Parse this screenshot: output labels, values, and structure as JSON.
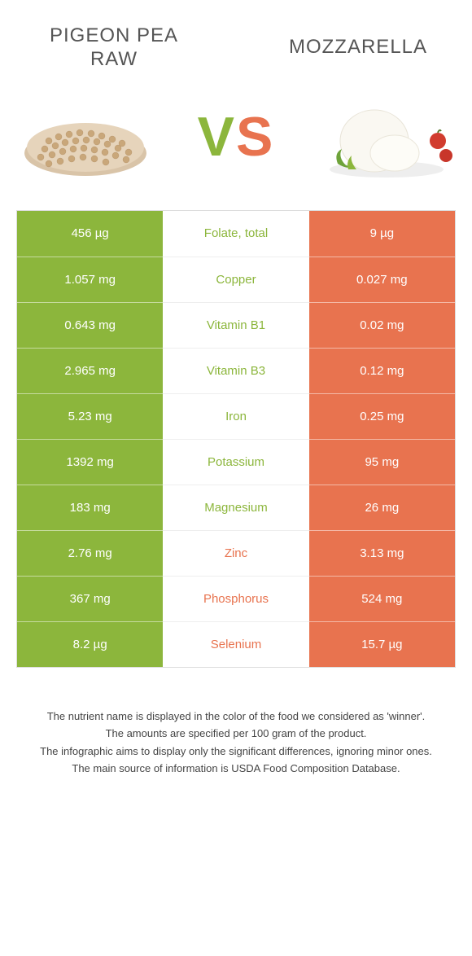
{
  "colors": {
    "left": "#8cb63c",
    "right": "#e8734f",
    "text": "#3a3a3a",
    "bg": "#ffffff"
  },
  "foods": {
    "left": {
      "title_line1": "Pigeon pea",
      "title_line2": "raw"
    },
    "right": {
      "title": "Mozzarella"
    }
  },
  "vs": {
    "v": "V",
    "s": "S"
  },
  "rows": [
    {
      "nutrient": "Folate, total",
      "left": "456 µg",
      "right": "9 µg",
      "winner": "left"
    },
    {
      "nutrient": "Copper",
      "left": "1.057 mg",
      "right": "0.027 mg",
      "winner": "left"
    },
    {
      "nutrient": "Vitamin B1",
      "left": "0.643 mg",
      "right": "0.02 mg",
      "winner": "left"
    },
    {
      "nutrient": "Vitamin B3",
      "left": "2.965 mg",
      "right": "0.12 mg",
      "winner": "left"
    },
    {
      "nutrient": "Iron",
      "left": "5.23 mg",
      "right": "0.25 mg",
      "winner": "left"
    },
    {
      "nutrient": "Potassium",
      "left": "1392 mg",
      "right": "95 mg",
      "winner": "left"
    },
    {
      "nutrient": "Magnesium",
      "left": "183 mg",
      "right": "26 mg",
      "winner": "left"
    },
    {
      "nutrient": "Zinc",
      "left": "2.76 mg",
      "right": "3.13 mg",
      "winner": "right"
    },
    {
      "nutrient": "Phosphorus",
      "left": "367 mg",
      "right": "524 mg",
      "winner": "right"
    },
    {
      "nutrient": "Selenium",
      "left": "8.2 µg",
      "right": "15.7 µg",
      "winner": "right"
    }
  ],
  "footnotes": [
    "The nutrient name is displayed in the color of the food we considered as 'winner'.",
    "The amounts are specified per 100 gram of the product.",
    "The infographic aims to display only the significant differences, ignoring minor ones.",
    "The main source of information is USDA Food Composition Database."
  ]
}
